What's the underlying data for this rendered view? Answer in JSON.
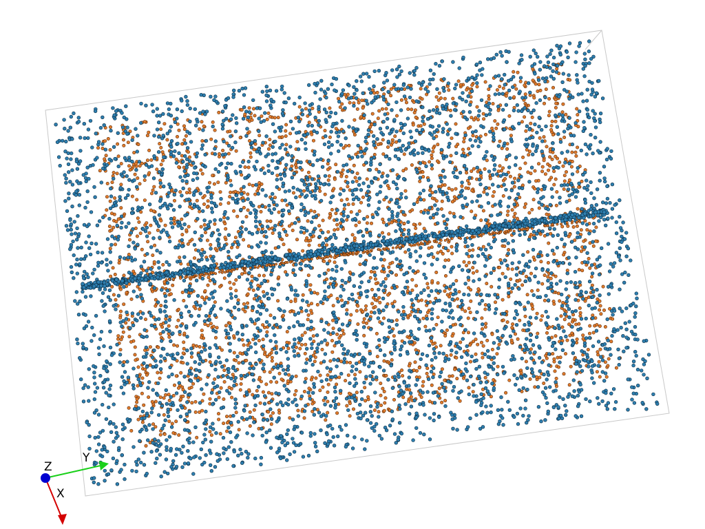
{
  "viewport": {
    "background": "#ffffff",
    "description_free": true
  },
  "particles": {
    "type_a_color": "#2e7fb0",
    "type_a_edge_color": "#0d2f45",
    "type_b_color": "#e07b2c",
    "type_b_edge_color": "#5a2a08"
  },
  "simulation_box": {
    "edge_color": "#c8c8c8"
  },
  "axis_tripod": {
    "x_label": "X",
    "y_label": "Y",
    "z_label": "Z",
    "x_color": "#d40000",
    "y_color": "#1ad01a",
    "z_color": "#0000d0"
  }
}
